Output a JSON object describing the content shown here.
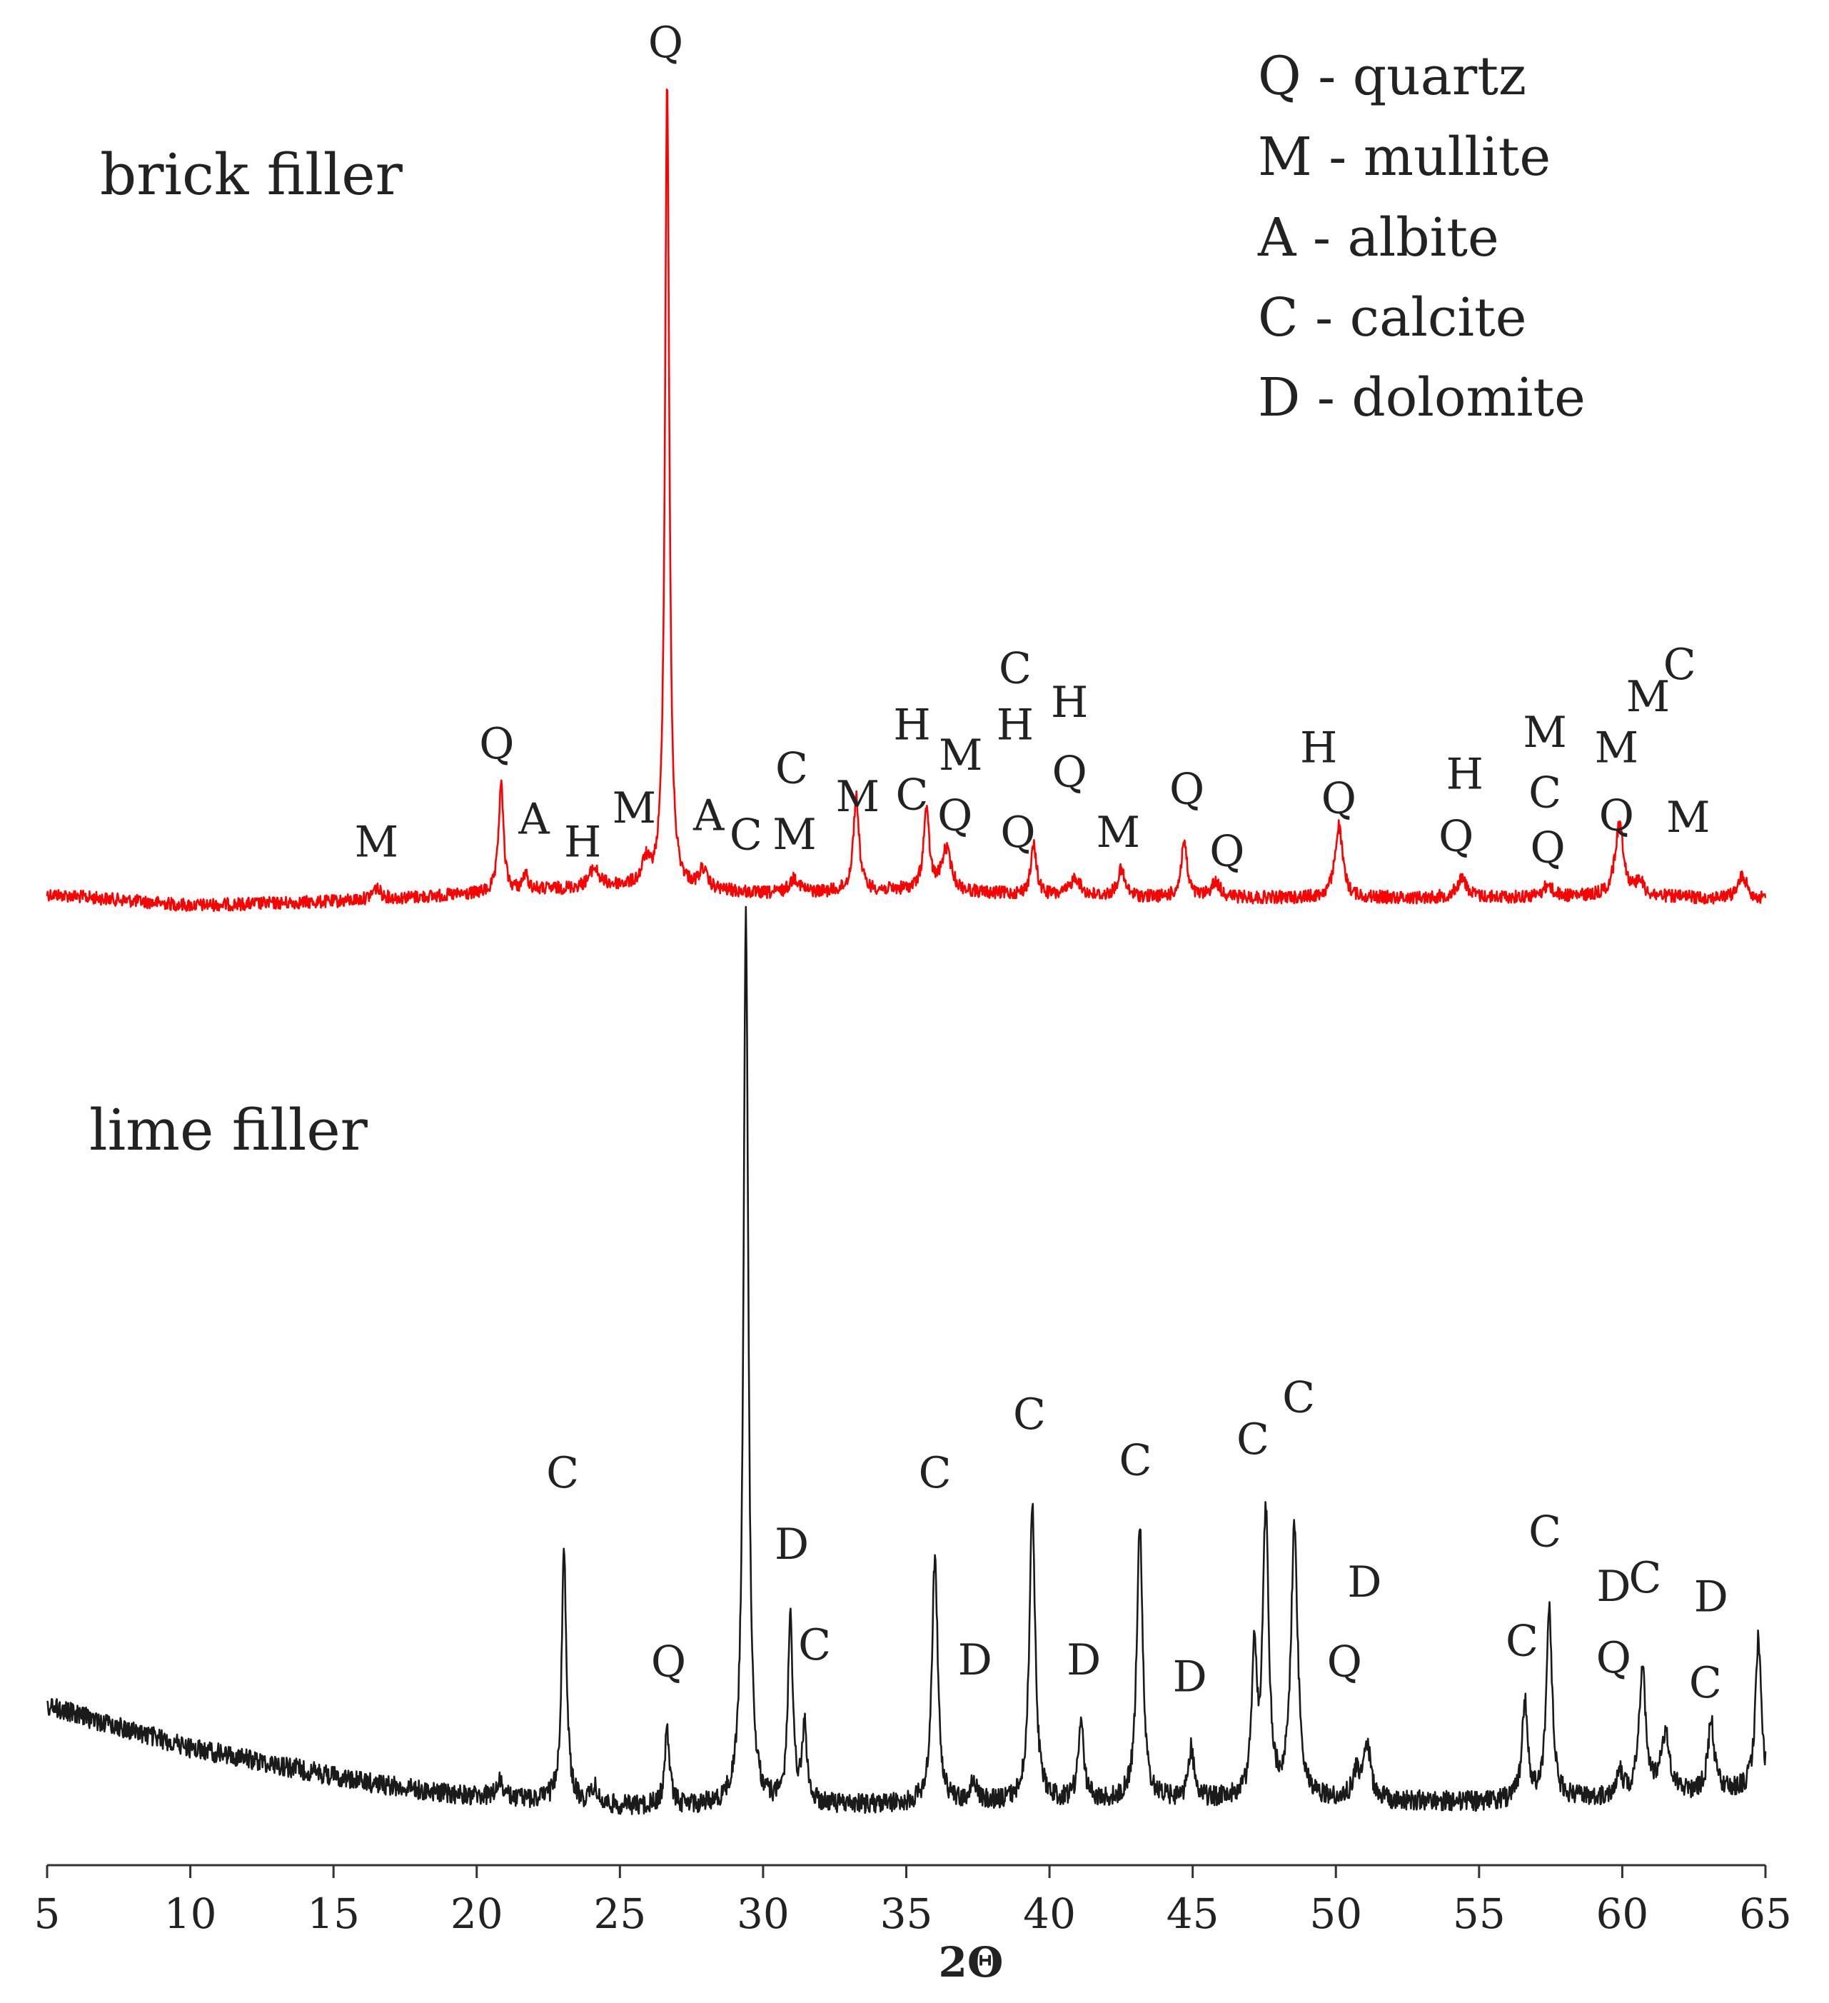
{
  "chart_data": {
    "type": "line",
    "xlabel": "2Θ",
    "xlim": [
      5,
      65
    ],
    "xticks": [
      5,
      10,
      15,
      20,
      25,
      30,
      35,
      40,
      45,
      50,
      55,
      60,
      65
    ],
    "legend": [
      "Q - quartz",
      "M - mullite",
      "A - albite",
      "C - calcite",
      "D - dolomite"
    ],
    "series": [
      {
        "name": "brick filler",
        "color": "#ff0000",
        "baseline_points": [
          [
            5,
            0.06
          ],
          [
            10,
            0.0
          ],
          [
            15,
            0.02
          ],
          [
            20,
            0.06
          ],
          [
            22,
            0.08
          ],
          [
            25,
            0.1
          ],
          [
            28,
            0.08
          ],
          [
            30,
            0.06
          ],
          [
            35,
            0.08
          ],
          [
            40,
            0.05
          ],
          [
            45,
            0.04
          ],
          [
            50,
            0.04
          ],
          [
            55,
            0.04
          ],
          [
            60,
            0.05
          ],
          [
            65,
            0.03
          ]
        ],
        "peaks": [
          {
            "x": 16.5,
            "h": 0.06,
            "w": 0.18
          },
          {
            "x": 20.85,
            "h": 0.58,
            "w": 0.1
          },
          {
            "x": 21.7,
            "h": 0.08,
            "w": 0.12
          },
          {
            "x": 24.1,
            "h": 0.1,
            "w": 0.2
          },
          {
            "x": 25.9,
            "h": 0.12,
            "w": 0.15
          },
          {
            "x": 26.65,
            "h": 4.28,
            "w": 0.09
          },
          {
            "x": 27.9,
            "h": 0.1,
            "w": 0.15
          },
          {
            "x": 31.1,
            "h": 0.08,
            "w": 0.2
          },
          {
            "x": 33.25,
            "h": 0.5,
            "w": 0.12
          },
          {
            "x": 35.7,
            "h": 0.42,
            "w": 0.12
          },
          {
            "x": 36.4,
            "h": 0.22,
            "w": 0.2
          },
          {
            "x": 39.45,
            "h": 0.26,
            "w": 0.12
          },
          {
            "x": 40.9,
            "h": 0.1,
            "w": 0.2
          },
          {
            "x": 42.5,
            "h": 0.14,
            "w": 0.15
          },
          {
            "x": 44.7,
            "h": 0.3,
            "w": 0.12
          },
          {
            "x": 45.8,
            "h": 0.08,
            "w": 0.2
          },
          {
            "x": 50.1,
            "h": 0.38,
            "w": 0.16
          },
          {
            "x": 54.4,
            "h": 0.1,
            "w": 0.22
          },
          {
            "x": 57.4,
            "h": 0.06,
            "w": 0.2
          },
          {
            "x": 59.9,
            "h": 0.38,
            "w": 0.18
          },
          {
            "x": 60.6,
            "h": 0.08,
            "w": 0.15
          },
          {
            "x": 64.2,
            "h": 0.12,
            "w": 0.2
          }
        ]
      },
      {
        "name": "lime filler",
        "color": "#1a1a1a",
        "baseline_points": [
          [
            5,
            0.48
          ],
          [
            8,
            0.36
          ],
          [
            10,
            0.28
          ],
          [
            13,
            0.2
          ],
          [
            16,
            0.12
          ],
          [
            19,
            0.06
          ],
          [
            23,
            0.02
          ],
          [
            25,
            0.0
          ],
          [
            30,
            0.0
          ],
          [
            40,
            0.02
          ],
          [
            45,
            0.03
          ],
          [
            50,
            0.03
          ],
          [
            55,
            0.02
          ],
          [
            60,
            0.04
          ],
          [
            65,
            0.08
          ]
        ],
        "peaks": [
          {
            "x": 20.8,
            "h": 0.08,
            "w": 0.12
          },
          {
            "x": 23.05,
            "h": 1.2,
            "w": 0.1
          },
          {
            "x": 24.1,
            "h": 0.08,
            "w": 0.12
          },
          {
            "x": 26.65,
            "h": 0.36,
            "w": 0.1
          },
          {
            "x": 29.4,
            "h": 4.26,
            "w": 0.1
          },
          {
            "x": 30.95,
            "h": 0.88,
            "w": 0.1
          },
          {
            "x": 31.45,
            "h": 0.36,
            "w": 0.1
          },
          {
            "x": 36.0,
            "h": 1.18,
            "w": 0.12
          },
          {
            "x": 37.35,
            "h": 0.1,
            "w": 0.12
          },
          {
            "x": 39.4,
            "h": 1.42,
            "w": 0.12
          },
          {
            "x": 41.1,
            "h": 0.36,
            "w": 0.12
          },
          {
            "x": 43.15,
            "h": 1.32,
            "w": 0.12
          },
          {
            "x": 44.95,
            "h": 0.24,
            "w": 0.12
          },
          {
            "x": 47.15,
            "h": 0.7,
            "w": 0.1
          },
          {
            "x": 47.55,
            "h": 1.36,
            "w": 0.12
          },
          {
            "x": 48.55,
            "h": 1.28,
            "w": 0.14
          },
          {
            "x": 50.7,
            "h": 0.12,
            "w": 0.15
          },
          {
            "x": 51.1,
            "h": 0.26,
            "w": 0.14
          },
          {
            "x": 56.6,
            "h": 0.46,
            "w": 0.12
          },
          {
            "x": 57.45,
            "h": 0.92,
            "w": 0.12
          },
          {
            "x": 59.9,
            "h": 0.12,
            "w": 0.14
          },
          {
            "x": 60.7,
            "h": 0.6,
            "w": 0.14
          },
          {
            "x": 61.5,
            "h": 0.28,
            "w": 0.2
          },
          {
            "x": 63.1,
            "h": 0.34,
            "w": 0.13
          },
          {
            "x": 64.75,
            "h": 0.72,
            "w": 0.12
          }
        ]
      }
    ],
    "annotations": {
      "brick": [
        {
          "t": "M",
          "x": 16.5,
          "y": 0.26
        },
        {
          "t": "Q",
          "x": 20.7,
          "y": 0.78
        },
        {
          "t": "A",
          "x": 22.0,
          "y": 0.38
        },
        {
          "t": "H",
          "x": 23.7,
          "y": 0.26
        },
        {
          "t": "M",
          "x": 25.5,
          "y": 0.44
        },
        {
          "t": "Q",
          "x": 26.6,
          "y": 4.5
        },
        {
          "t": "A",
          "x": 28.1,
          "y": 0.4
        },
        {
          "t": "C",
          "x": 31.0,
          "y": 0.65
        },
        {
          "t": "M",
          "x": 31.1,
          "y": 0.3
        },
        {
          "t": "M",
          "x": 33.3,
          "y": 0.5
        },
        {
          "t": "H",
          "x": 35.2,
          "y": 0.88
        },
        {
          "t": "C",
          "x": 35.2,
          "y": 0.51
        },
        {
          "t": "M",
          "x": 36.9,
          "y": 0.72
        },
        {
          "t": "Q",
          "x": 36.7,
          "y": 0.4
        },
        {
          "t": "C",
          "x": 38.8,
          "y": 1.18
        },
        {
          "t": "H",
          "x": 40.7,
          "y": 1.0
        },
        {
          "t": "H",
          "x": 38.8,
          "y": 0.88
        },
        {
          "t": "Q",
          "x": 40.7,
          "y": 0.63
        },
        {
          "t": "Q",
          "x": 38.9,
          "y": 0.31
        },
        {
          "t": "M",
          "x": 42.4,
          "y": 0.31
        },
        {
          "t": "Q",
          "x": 44.8,
          "y": 0.54
        },
        {
          "t": "Q",
          "x": 46.2,
          "y": 0.21
        },
        {
          "t": "H",
          "x": 49.4,
          "y": 0.76
        },
        {
          "t": "Q",
          "x": 50.1,
          "y": 0.49
        },
        {
          "t": "H",
          "x": 54.5,
          "y": 0.62
        },
        {
          "t": "Q",
          "x": 54.2,
          "y": 0.29
        },
        {
          "t": "M",
          "x": 57.3,
          "y": 0.84
        },
        {
          "t": "C",
          "x": 57.3,
          "y": 0.52
        },
        {
          "t": "Q",
          "x": 57.4,
          "y": 0.23
        },
        {
          "t": "M",
          "x": 59.8,
          "y": 0.76
        },
        {
          "t": "Q",
          "x": 59.8,
          "y": 0.4
        },
        {
          "t": "M",
          "x": 60.9,
          "y": 1.03
        },
        {
          "t": "C",
          "x": 62.0,
          "y": 1.2
        },
        {
          "t": "M",
          "x": 62.3,
          "y": 0.39
        }
      ],
      "lime": [
        {
          "t": "C",
          "x": 23.0,
          "y": 1.52
        },
        {
          "t": "Q",
          "x": 26.7,
          "y": 0.62
        },
        {
          "t": "C",
          "x": 29.4,
          "y": 4.56
        },
        {
          "t": "D",
          "x": 31.0,
          "y": 1.18
        },
        {
          "t": "C",
          "x": 31.8,
          "y": 0.7
        },
        {
          "t": "C",
          "x": 36.0,
          "y": 1.52
        },
        {
          "t": "D",
          "x": 37.4,
          "y": 0.63
        },
        {
          "t": "C",
          "x": 39.3,
          "y": 1.8
        },
        {
          "t": "D",
          "x": 41.2,
          "y": 0.63
        },
        {
          "t": "C",
          "x": 43.0,
          "y": 1.58
        },
        {
          "t": "D",
          "x": 44.9,
          "y": 0.55
        },
        {
          "t": "C",
          "x": 47.1,
          "y": 1.68
        },
        {
          "t": "C",
          "x": 48.7,
          "y": 1.88
        },
        {
          "t": "D",
          "x": 51.0,
          "y": 1.0
        },
        {
          "t": "Q",
          "x": 50.3,
          "y": 0.62
        },
        {
          "t": "C",
          "x": 56.5,
          "y": 0.72
        },
        {
          "t": "C",
          "x": 57.3,
          "y": 1.24
        },
        {
          "t": "D",
          "x": 59.7,
          "y": 0.98
        },
        {
          "t": "C",
          "x": 60.8,
          "y": 1.02
        },
        {
          "t": "D",
          "x": 63.1,
          "y": 0.93
        },
        {
          "t": "Q",
          "x": 59.7,
          "y": 0.64
        },
        {
          "t": "C",
          "x": 62.9,
          "y": 0.52
        }
      ]
    },
    "panel_titles": {
      "brick": "brick filler",
      "lime": "lime filler"
    }
  }
}
